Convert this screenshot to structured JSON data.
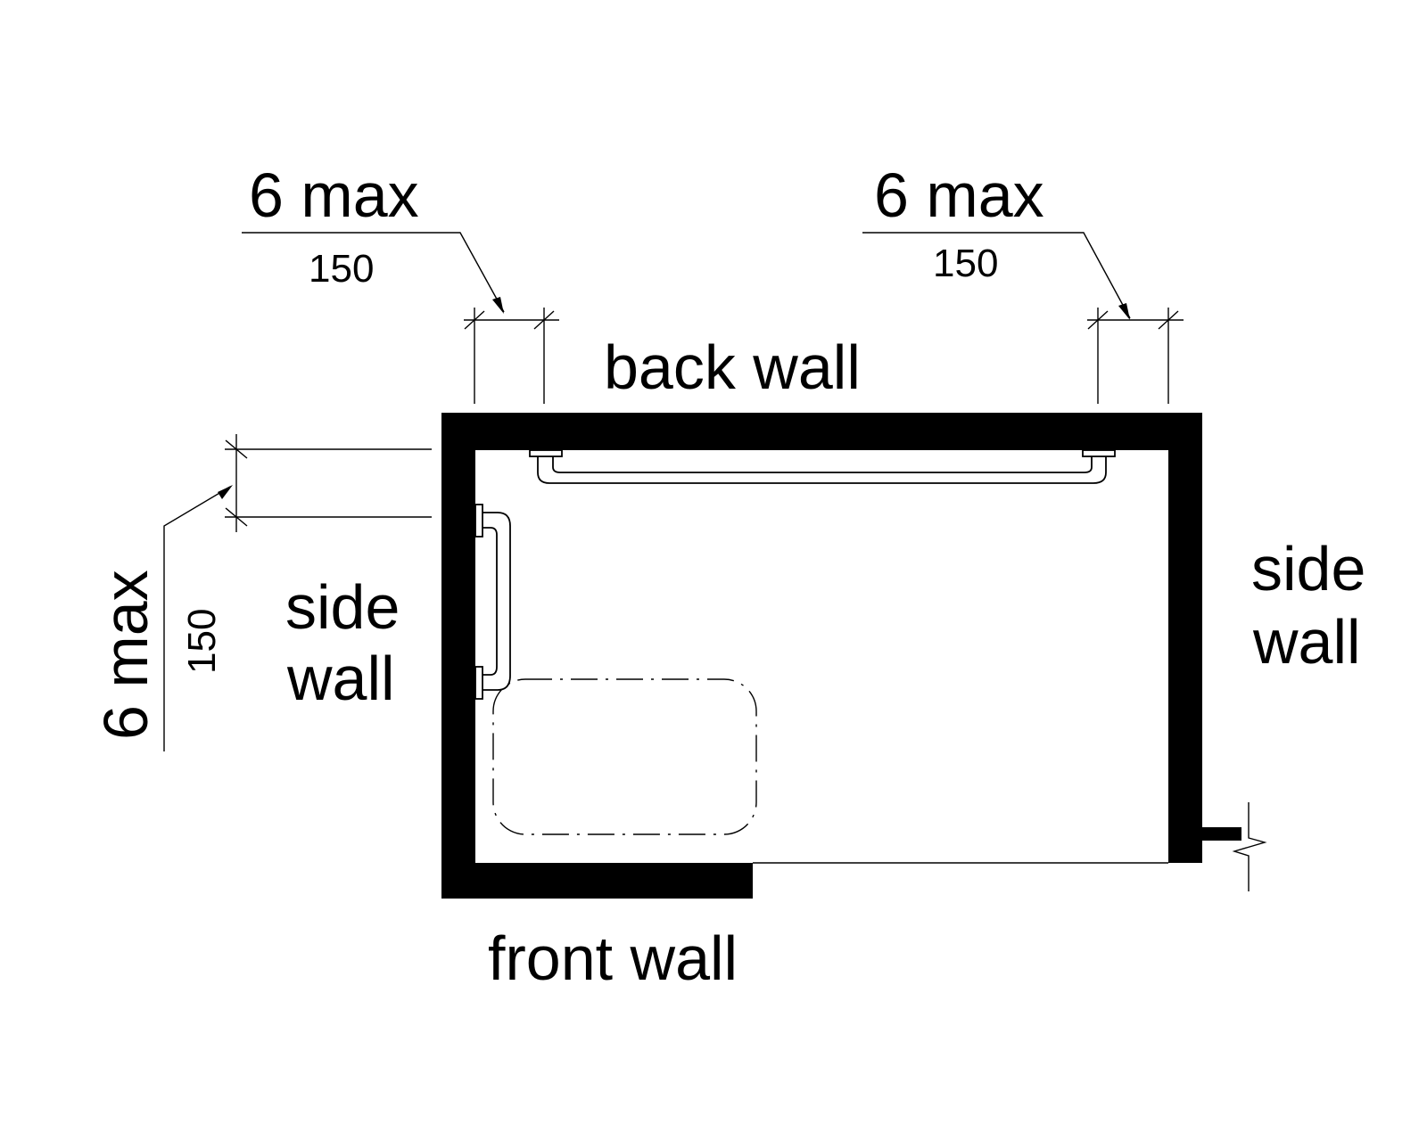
{
  "labels": {
    "back_wall": "back wall",
    "front_wall": "front wall",
    "left_side_wall": [
      "side",
      "wall"
    ],
    "right_side_wall": [
      "side",
      "wall"
    ]
  },
  "dimensions": {
    "back_left": {
      "imperial": "6 max",
      "metric": "150"
    },
    "back_right": {
      "imperial": "6 max",
      "metric": "150"
    },
    "side_left": {
      "imperial": "6 max",
      "metric": "150"
    }
  },
  "colors": {
    "ink": "#000000",
    "background": "#ffffff"
  }
}
